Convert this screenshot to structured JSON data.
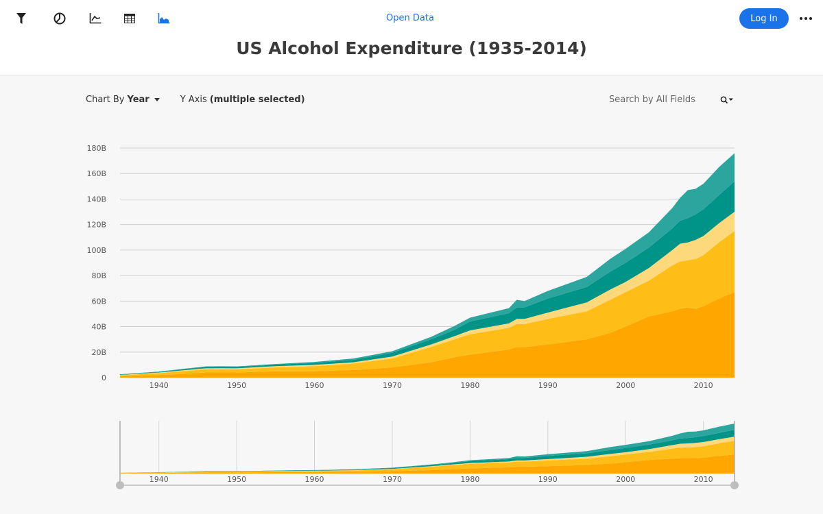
{
  "toolbar": {
    "icons": [
      "filter-icon",
      "pie-chart-icon",
      "line-chart-icon",
      "table-icon",
      "area-chart-icon"
    ],
    "open_data_label": "Open Data",
    "login_label": "Log In",
    "more_icon": "more-dots-icon",
    "accent_color": "#1a73e8"
  },
  "page": {
    "title": "US Alcohol Expenditure (1935-2014)"
  },
  "controls": {
    "chart_by_prefix": "Chart By",
    "chart_by_value": "Year",
    "y_axis_prefix": "Y Axis",
    "y_axis_value": "(multiple selected)",
    "search_placeholder": "Search by All Fields"
  },
  "chart_data": {
    "type": "area",
    "stacked": true,
    "x_label_ticks": [
      1940,
      1950,
      1960,
      1970,
      1980,
      1990,
      2000,
      2010
    ],
    "y_ticks": [
      "0",
      "20B",
      "40B",
      "60B",
      "80B",
      "100B",
      "120B",
      "140B",
      "160B",
      "180B"
    ],
    "xlim": [
      1935,
      2014
    ],
    "ylim": [
      0,
      180
    ],
    "grid": true,
    "x": [
      1935,
      1940,
      1946,
      1948,
      1950,
      1955,
      1960,
      1965,
      1970,
      1975,
      1978,
      1980,
      1985,
      1986,
      1987,
      1990,
      1995,
      1998,
      2000,
      2003,
      2006,
      2007,
      2008,
      2009,
      2010,
      2012,
      2014
    ],
    "series": [
      {
        "color": "#ffa600",
        "values": [
          1,
          2,
          4,
          4,
          4,
          5,
          5,
          6,
          8,
          12,
          16,
          18,
          22,
          24,
          24,
          26,
          30,
          35,
          40,
          48,
          52,
          54,
          55,
          54,
          56,
          62,
          67
        ]
      },
      {
        "color": "#ffbd17",
        "values": [
          0.8,
          1.5,
          2.5,
          2.6,
          2.5,
          3,
          4,
          5,
          7,
          12,
          14,
          16,
          17,
          18,
          18,
          20,
          22,
          26,
          27,
          28,
          36,
          37,
          37,
          39,
          40,
          44,
          48
        ]
      },
      {
        "color": "#fed97c",
        "values": [
          0.3,
          0.5,
          0.8,
          0.8,
          0.8,
          1,
          1,
          1,
          1.5,
          2,
          2.5,
          3,
          3.5,
          4,
          4,
          5,
          7,
          8,
          8,
          10,
          12,
          14,
          14,
          15,
          15,
          15,
          15
        ]
      },
      {
        "color": "#009488",
        "values": [
          0.3,
          0.5,
          1,
          1,
          1,
          1.2,
          1.5,
          2,
          3,
          4,
          5,
          7,
          8,
          9,
          9,
          11,
          12,
          14,
          15,
          16,
          17,
          18,
          19,
          20,
          21,
          22,
          24
        ]
      },
      {
        "color": "#2ca59e",
        "values": [
          0.2,
          0.3,
          0.5,
          0.5,
          0.5,
          0.5,
          0.8,
          1,
          1.2,
          2,
          3,
          3,
          4,
          6,
          5,
          6,
          8,
          10,
          11,
          12,
          16,
          18,
          22,
          20,
          20,
          22,
          22
        ]
      }
    ]
  }
}
